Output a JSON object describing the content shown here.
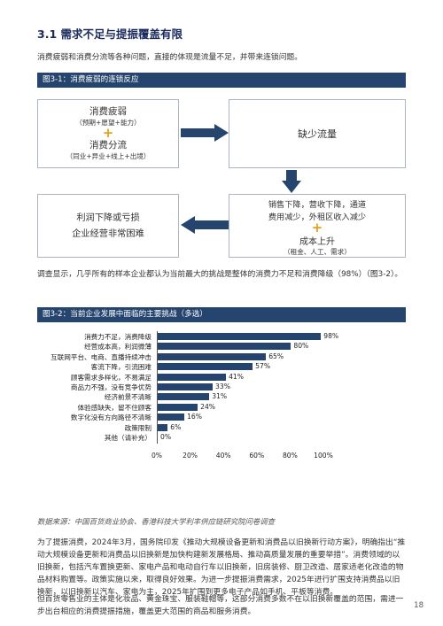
{
  "section": {
    "title": "3.1 需求不足与提振覆盖有限"
  },
  "intro": "消费疲弱和消费分流等各种问题，直接的体现是流量不足，并带来连锁问题。",
  "figure1": {
    "title": "图3-1：消费疲弱的连锁反应",
    "box_weak_title": "消费疲弱",
    "box_weak_sub": "（预期+愿望+能力）",
    "box_split_title": "消费分流",
    "box_split_sub": "（同业+异业+线上+出境）",
    "box_traffic": "缺少流量",
    "box_sales_1": "销售下降，营收下降，通道",
    "box_sales_2": "费用减少，外租区收入减少",
    "box_cost_title": "成本上升",
    "box_cost_sub": "（租金、人工、需求）",
    "box_profit_1": "利润下降或亏损",
    "box_profit_2": "企业经营非常困难",
    "plus": "+"
  },
  "para1": "调查显示，几乎所有的样本企业都认为当前最大的挑战是整体的消费力不足和消费降级（98%）（图3-2）。",
  "figure2": {
    "title": "图3-2：当前企业发展中面临的主要挑战（多选）"
  },
  "chart_data": {
    "type": "bar",
    "orientation": "horizontal",
    "categories": [
      "消费力不足，消费降级",
      "经营成本高，利润微薄",
      "互联网平台、电商、直播持续冲击",
      "客流下降，引流困难",
      "顾客需求多样化，不易满足",
      "商品力不强，没有竞争优势",
      "经济前景不清晰",
      "体验感缺失，留不住顾客",
      "数字化没有方向路径不清晰",
      "政策限制",
      "其他（请补充）"
    ],
    "values": [
      98,
      80,
      65,
      57,
      41,
      33,
      31,
      24,
      16,
      6,
      0
    ],
    "value_labels": [
      "98%",
      "80%",
      "65%",
      "57%",
      "41%",
      "33%",
      "31%",
      "24%",
      "16%",
      "6%",
      "0%"
    ],
    "xlim": [
      0,
      100
    ],
    "xticks": [
      "0%",
      "20%",
      "40%",
      "60%",
      "80%",
      "100%"
    ],
    "bar_color": "#26456e"
  },
  "source": "数据来源：中国百货商业协会、香港科技大学利丰供应链研究院问卷调查",
  "para2": "为了提振消费，2024年3月，国务院印发《推动大规模设备更新和消费品以旧换新行动方案》，明确指出“推动大规模设备更新和消费品以旧换新是加快构建新发展格局、推动高质量发展的重要举措”。消费领域的以旧换新，包括汽车置换更新、家电产品和电动自行车以旧换新，旧房装修、厨卫改造、居家适老化改造的物品材料购置等。政策实施以来，取得良好效果。为进一步提振消费需求，2025年进行扩围支持消费品以旧换新，以旧换新以汽车、家电为主，2025年扩围到更多电子产品如手机、平板等消费。",
  "para3": "但百货零售业的主体是化妆品、黄金珠宝、服装鞋帽等，这部分消费多数不在以旧换新覆盖的范围，需进一步出台相应的消费提振措施，覆盖更大范围的商品和服务消费。",
  "page_number": "18"
}
